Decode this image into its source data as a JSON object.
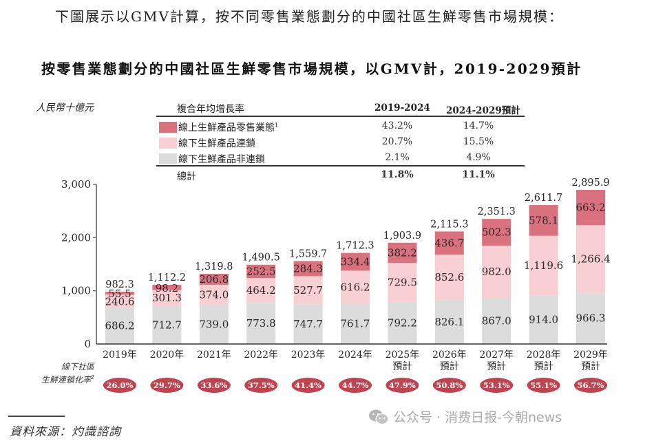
{
  "intro_text": "下圖展示以GMV計算，按不同零售業態劃分的中國社區生鮮零售市場規模：",
  "colors": {
    "online": "#d9727e",
    "offline_chain": "#f8cfd2",
    "offline_nonchain": "#dcdcdc",
    "rate_badge": "#c0444f"
  },
  "cagr_table": {
    "header": "複合年均增長率",
    "columns": [
      "2019-2024",
      "2024-2029預計"
    ],
    "rows": [
      {
        "label": "線上生鮮產品零售業態",
        "footnote": "1",
        "values": [
          "43.2%",
          "14.7%"
        ],
        "swatch": "online"
      },
      {
        "label": "線下生鮮產品連鎖",
        "footnote": "",
        "values": [
          "20.7%",
          "15.5%"
        ],
        "swatch": "offline_chain"
      },
      {
        "label": "線下生鮮產品非連鎖",
        "footnote": "",
        "values": [
          "2.1%",
          "4.9%"
        ],
        "swatch": "offline_nonchain"
      }
    ],
    "total": {
      "label": "總計",
      "values": [
        "11.8%",
        "11.1%"
      ]
    }
  },
  "chain_rate": {
    "caption_line1": "線下社區",
    "caption_line2": "生鮮連鎖化率",
    "caption_footnote": "2",
    "values": [
      "26.0%",
      "29.7%",
      "33.6%",
      "37.5%",
      "41.4%",
      "44.7%",
      "47.9%",
      "50.8%",
      "53.1%",
      "55.1%",
      "56.7%"
    ]
  },
  "source": "資料來源：灼識諮詢",
  "watermark": "公众号 · 消费日报-今朝news",
  "chart_data": {
    "type": "bar",
    "stacked": true,
    "title": "按零售業態劃分的中國社區生鮮零售市場規模，以GMV計，2019-2029預計",
    "ylabel": "人民幣十億元",
    "xlabel": "",
    "ylim": [
      0,
      3000
    ],
    "yticks": [
      0,
      1000,
      2000,
      3000
    ],
    "ytick_labels": [
      "0",
      "1,000",
      "2,000",
      "3,000"
    ],
    "grid": false,
    "legend": "top-center",
    "categories": [
      "2019年",
      "2020年",
      "2021年",
      "2022年",
      "2023年",
      "2024年",
      "2025年",
      "2026年",
      "2027年",
      "2028年",
      "2029年"
    ],
    "category_sublabels": [
      "",
      "",
      "",
      "",
      "",
      "",
      "預計",
      "預計",
      "預計",
      "預計",
      "預計"
    ],
    "series": [
      {
        "name": "線下生鮮產品非連鎖",
        "key": "offline_nonchain",
        "values": [
          686.2,
          712.7,
          739.0,
          773.8,
          747.7,
          761.7,
          792.2,
          826.1,
          867.0,
          914.0,
          966.3
        ],
        "labels": [
          "686.2",
          "712.7",
          "739.0",
          "773.8",
          "747.7",
          "761.7",
          "792.2",
          "826.1",
          "867.0",
          "914.0",
          "966.3"
        ]
      },
      {
        "name": "線下生鮮產品連鎖",
        "key": "offline_chain",
        "values": [
          240.6,
          301.3,
          374.0,
          464.2,
          527.7,
          616.2,
          729.5,
          852.6,
          982.0,
          1119.6,
          1266.4
        ],
        "labels": [
          "240.6",
          "301.3",
          "374.0",
          "464.2",
          "527.7",
          "616.2",
          "729.5",
          "852.6",
          "982.0",
          "1,119.6",
          "1,266.4"
        ]
      },
      {
        "name": "線上生鮮產品零售業態",
        "key": "online",
        "values": [
          55.5,
          98.2,
          206.8,
          252.5,
          284.3,
          334.4,
          382.2,
          436.7,
          502.3,
          578.1,
          663.2
        ],
        "labels": [
          "55.5",
          "98.2",
          "206.8",
          "252.5",
          "284.3",
          "334.4",
          "382.2",
          "436.7",
          "502.3",
          "578.1",
          "663.2"
        ]
      }
    ],
    "totals": [
      982.3,
      1112.2,
      1319.8,
      1490.5,
      1559.7,
      1712.3,
      1903.9,
      2115.3,
      2351.3,
      2611.7,
      2895.9
    ],
    "total_labels": [
      "982.3",
      "1,112.2",
      "1,319.8",
      "1,490.5",
      "1,559.7",
      "1,712.3",
      "1,903.9",
      "2,115.3",
      "2,351.3",
      "2,611.7",
      "2,895.9"
    ]
  }
}
